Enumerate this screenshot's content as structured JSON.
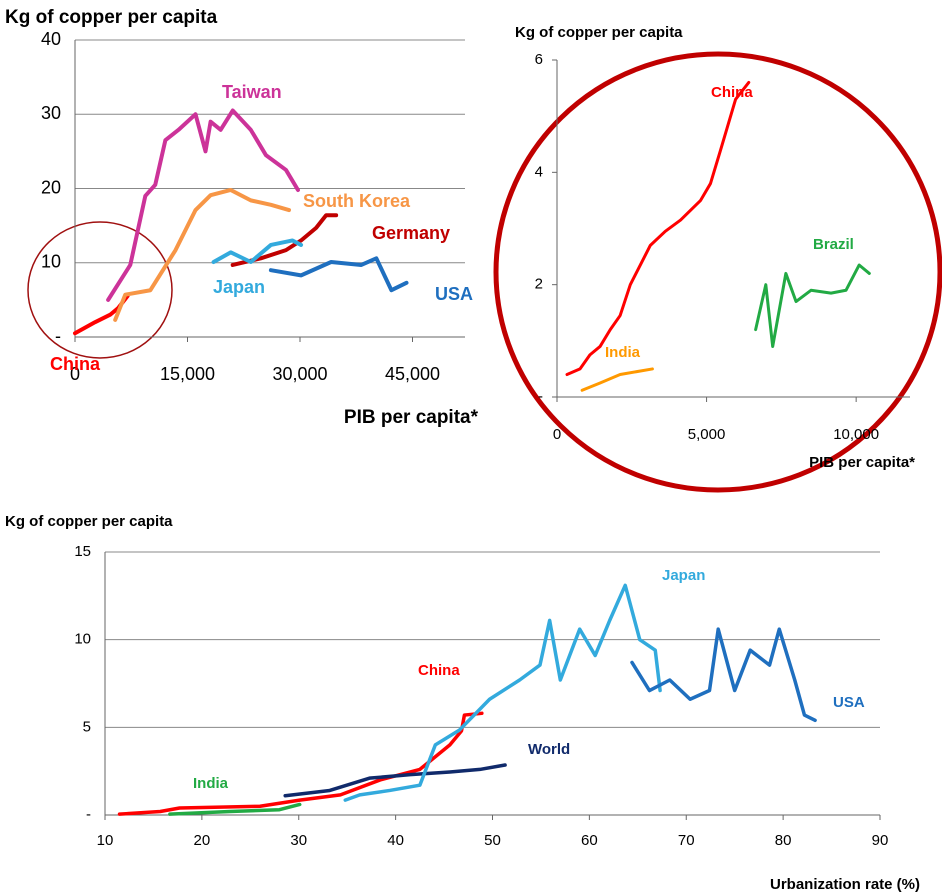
{
  "chart_data": [
    {
      "type": "line",
      "title": "Kg of copper per capita",
      "x_label": "PIB per capita*",
      "xlim": [
        0,
        52000
      ],
      "ylim": [
        0,
        40
      ],
      "grid": true,
      "xticks": [
        0,
        {
          "value": 15000,
          "label": "15,000"
        },
        {
          "value": 30000,
          "label": "30,000"
        },
        {
          "value": 45000,
          "label": "45,000"
        }
      ],
      "yticks": [
        {
          "value": 0,
          "label": "-"
        },
        10,
        20,
        30,
        40
      ],
      "series": [
        {
          "name": "China",
          "color": "#ff0000",
          "x": [
            0,
            2680,
            4690,
            5760,
            7000
          ],
          "values": [
            0.5,
            2,
            3,
            3.9,
            5.5
          ]
        },
        {
          "name": "Taiwan",
          "color": "#cc3399",
          "x": [
            4420,
            7370,
            9375,
            10700,
            12050,
            13800,
            16070,
            17400,
            18080,
            19420,
            21030,
            23440,
            25450,
            28130,
            29730
          ],
          "values": [
            5,
            9.7,
            19,
            20.5,
            26.5,
            27.9,
            30,
            25,
            29,
            27.9,
            30.5,
            27.9,
            24.5,
            22.5,
            19.8
          ]
        },
        {
          "name": "South Korea",
          "color": "#f79646",
          "x": [
            5360,
            6700,
            10050,
            13400,
            16070,
            18080,
            20760,
            23440,
            26120,
            28530
          ],
          "values": [
            2.3,
            5.7,
            6.3,
            11.7,
            17.1,
            19.1,
            19.8,
            18.4,
            17.8,
            17.1
          ]
        },
        {
          "name": "Germany",
          "color": "#c00000",
          "x": [
            21030,
            24780,
            28130,
            30140,
            32150,
            33480,
            34820
          ],
          "values": [
            9.7,
            10.6,
            11.7,
            13,
            14.7,
            16.4,
            16.4
          ]
        },
        {
          "name": "Japan",
          "color": "#33aadd",
          "x": [
            18480,
            20760,
            23440,
            26120,
            29000,
            30140
          ],
          "values": [
            10.1,
            11.4,
            10.1,
            12.4,
            13,
            12.4
          ]
        },
        {
          "name": "USA",
          "color": "#1f6fbf",
          "x": [
            26120,
            30140,
            34150,
            38170,
            40180,
            42190,
            44200
          ],
          "values": [
            9,
            8.3,
            10.1,
            9.7,
            10.6,
            6.3,
            7.3
          ]
        }
      ]
    },
    {
      "type": "line",
      "title": "Kg of copper per capita",
      "x_label": "PIB per capita*",
      "xlim": [
        0,
        11800
      ],
      "ylim": [
        0,
        6
      ],
      "grid": false,
      "xticks": [
        0,
        {
          "value": 5000,
          "label": "5,000"
        },
        {
          "value": 10000,
          "label": "10,000"
        }
      ],
      "yticks": [
        {
          "value": 0,
          "label": "-"
        },
        2,
        4,
        6
      ],
      "series": [
        {
          "name": "China",
          "color": "#ff0000",
          "x": [
            335,
            770,
            1100,
            1440,
            1780,
            2110,
            2450,
            3120,
            3620,
            4130,
            4800,
            5130,
            5470,
            5970,
            6410
          ],
          "values": [
            0.4,
            0.5,
            0.75,
            0.9,
            1.2,
            1.45,
            2.0,
            2.7,
            2.95,
            3.15,
            3.5,
            3.8,
            4.4,
            5.3,
            5.6
          ]
        },
        {
          "name": "India",
          "color": "#ff9900",
          "x": [
            840,
            1440,
            2110,
            3190
          ],
          "values": [
            0.12,
            0.25,
            0.4,
            0.5
          ]
        },
        {
          "name": "Brazil",
          "color": "#22aa44",
          "x": [
            6640,
            6980,
            7210,
            7650,
            7990,
            8490,
            9160,
            9660,
            10100,
            10440
          ],
          "values": [
            1.2,
            2.0,
            0.9,
            2.2,
            1.7,
            1.9,
            1.85,
            1.9,
            2.35,
            2.2
          ]
        }
      ]
    },
    {
      "type": "line",
      "title": "Kg of copper per capita",
      "x_label": "Urbanization rate (%)",
      "xlim": [
        10,
        90
      ],
      "ylim": [
        0,
        15
      ],
      "grid": true,
      "xticks": [
        10,
        20,
        30,
        40,
        50,
        60,
        70,
        80,
        90
      ],
      "yticks": [
        {
          "value": 0,
          "label": "-"
        },
        5,
        10,
        15
      ],
      "series": [
        {
          "name": "China",
          "color": "#ff0000",
          "x": [
            11.5,
            15.7,
            17.7,
            26,
            30.1,
            34.3,
            38.4,
            42.5,
            45.6,
            46.8,
            47.1,
            48.9
          ],
          "values": [
            0.05,
            0.2,
            0.4,
            0.5,
            0.85,
            1.15,
            2,
            2.6,
            4,
            4.8,
            5.7,
            5.8
          ]
        },
        {
          "name": "India",
          "color": "#22aa44",
          "x": [
            16.7,
            22.9,
            28,
            30.1
          ],
          "values": [
            0.05,
            0.2,
            0.3,
            0.6
          ]
        },
        {
          "name": "World",
          "color": "#102a6b",
          "x": [
            28.6,
            33.2,
            37.3,
            41.5,
            45.6,
            48.7,
            51.3
          ],
          "values": [
            1.1,
            1.4,
            2.1,
            2.3,
            2.45,
            2.6,
            2.85
          ]
        },
        {
          "name": "Japan",
          "color": "#33aadd",
          "x": [
            34.8,
            36.3,
            39.4,
            42.5,
            44.1,
            46.6,
            49.7,
            52.8,
            54.9,
            55.9,
            57,
            59,
            60.6,
            62.1,
            63.7,
            65.2,
            66.8,
            67.3
          ],
          "values": [
            0.85,
            1.15,
            1.4,
            1.7,
            4,
            4.85,
            6.6,
            7.7,
            8.55,
            11.1,
            7.7,
            10.6,
            9.1,
            11.1,
            13.1,
            10,
            9.4,
            7.1
          ]
        },
        {
          "name": "USA",
          "color": "#1f6fbf",
          "x": [
            64.4,
            66.2,
            68.3,
            70.4,
            72.4,
            73.3,
            75,
            76.6,
            78.6,
            79.6,
            81.2,
            82.2,
            83.3
          ],
          "values": [
            8.7,
            7.1,
            7.7,
            6.6,
            7.1,
            10.6,
            7.1,
            9.4,
            8.55,
            10.6,
            7.7,
            5.7,
            5.4
          ]
        }
      ]
    }
  ]
}
